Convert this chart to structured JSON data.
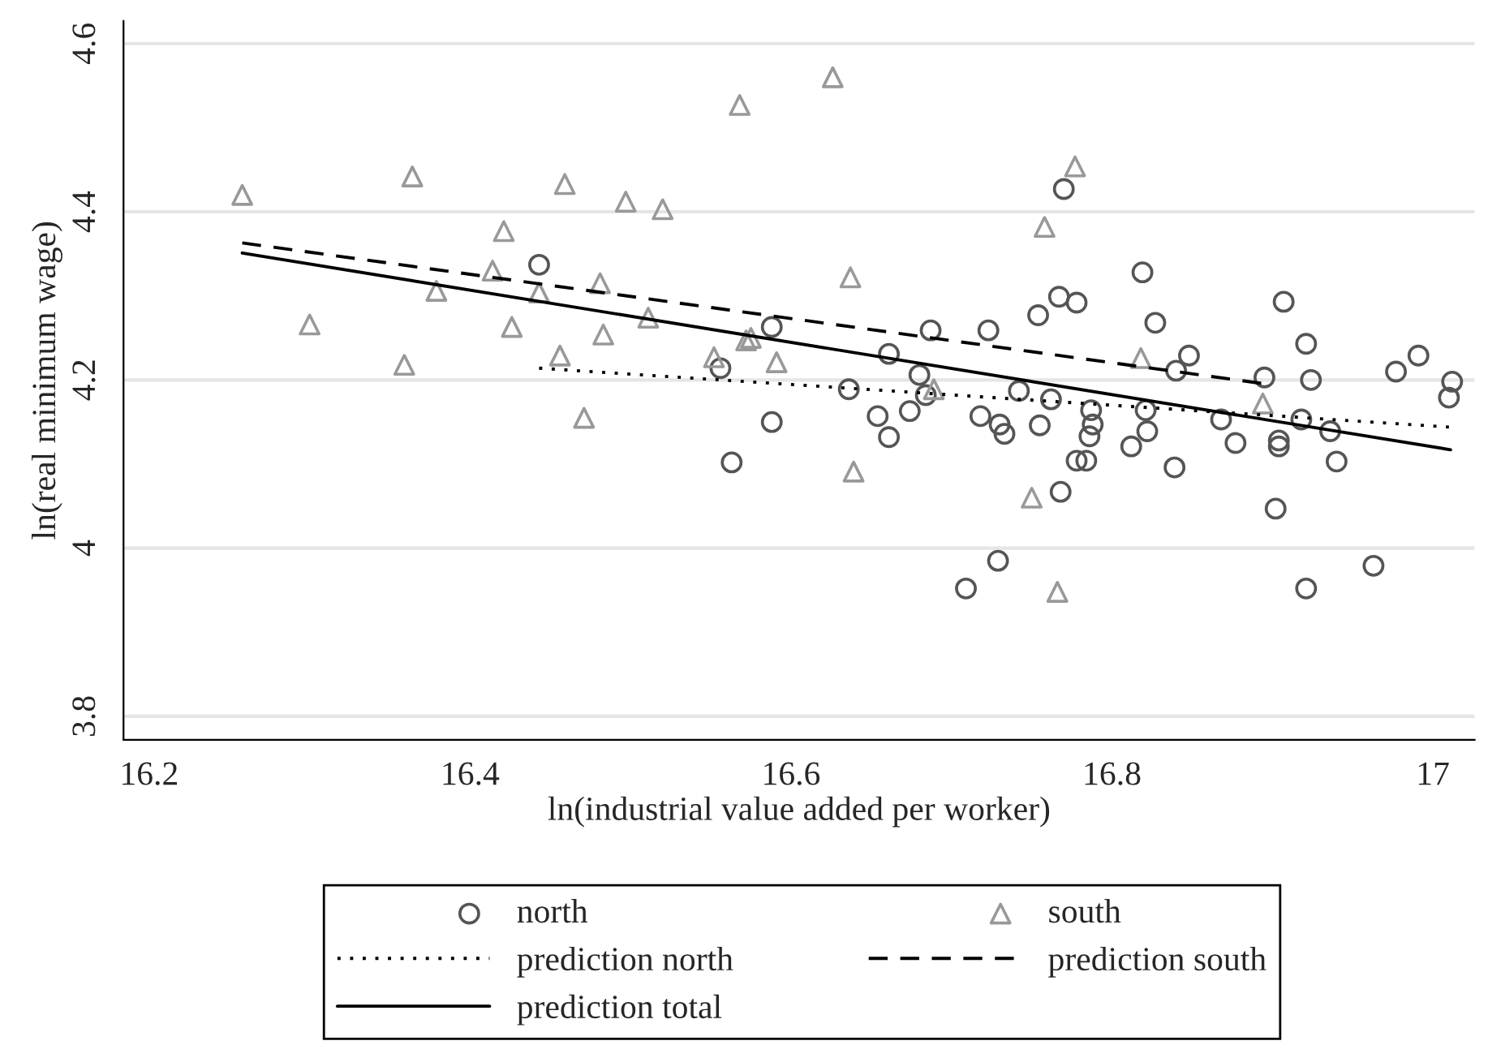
{
  "chart_data": {
    "type": "scatter",
    "xlabel": "ln(industrial value added per worker)",
    "ylabel": "ln(real minimum wage)",
    "xlim": [
      16.184,
      17.026
    ],
    "ylim": [
      3.772,
      4.627
    ],
    "xticks": [
      16.2,
      16.4,
      16.6,
      16.8,
      17
    ],
    "yticks": [
      3.8,
      4,
      4.2,
      4.4,
      4.6
    ],
    "grid": "y",
    "legend": "bottom",
    "series": [
      {
        "name": "north",
        "marker": "circle",
        "color": "#555555",
        "x": [
          16.443,
          16.588,
          16.556,
          16.588,
          16.563,
          16.636,
          16.661,
          16.654,
          16.661,
          16.674,
          16.68,
          16.684,
          16.687,
          16.709,
          16.718,
          16.723,
          16.729,
          16.73,
          16.733,
          16.742,
          16.754,
          16.755,
          16.762,
          16.767,
          16.768,
          16.77,
          16.778,
          16.778,
          16.784,
          16.787,
          16.788,
          16.786,
          16.812,
          16.819,
          16.821,
          16.822,
          16.827,
          16.839,
          16.84,
          16.848,
          16.868,
          16.877,
          16.895,
          16.902,
          16.904,
          16.904,
          16.907,
          16.918,
          16.921,
          16.921,
          16.924,
          16.936,
          16.94,
          16.963,
          16.977,
          16.991,
          17.012,
          17.01
        ],
        "values": [
          4.337,
          4.263,
          4.214,
          4.15,
          4.102,
          4.189,
          4.231,
          4.157,
          4.132,
          4.163,
          4.206,
          4.182,
          4.259,
          3.952,
          4.157,
          4.259,
          3.985,
          4.147,
          4.136,
          4.187,
          4.277,
          4.146,
          4.177,
          4.299,
          4.067,
          4.427,
          4.292,
          4.104,
          4.104,
          4.164,
          4.147,
          4.133,
          4.121,
          4.328,
          4.164,
          4.139,
          4.268,
          4.096,
          4.211,
          4.229,
          4.153,
          4.125,
          4.203,
          4.047,
          4.128,
          4.121,
          4.293,
          4.153,
          4.243,
          3.952,
          4.2,
          4.139,
          4.103,
          3.979,
          4.21,
          4.229,
          4.198,
          4.179
        ]
      },
      {
        "name": "south",
        "marker": "triangle",
        "color": "#999999",
        "x": [
          16.258,
          16.364,
          16.3,
          16.359,
          16.379,
          16.421,
          16.414,
          16.426,
          16.443,
          16.459,
          16.456,
          16.481,
          16.483,
          16.471,
          16.497,
          16.52,
          16.511,
          16.568,
          16.552,
          16.572,
          16.575,
          16.591,
          16.626,
          16.637,
          16.639,
          16.689,
          16.758,
          16.777,
          16.75,
          16.766,
          16.818,
          16.894
        ],
        "values": [
          4.42,
          4.442,
          4.266,
          4.218,
          4.306,
          4.377,
          4.33,
          4.263,
          4.304,
          4.433,
          4.229,
          4.315,
          4.254,
          4.155,
          4.412,
          4.403,
          4.274,
          4.527,
          4.227,
          4.247,
          4.25,
          4.221,
          4.56,
          4.322,
          4.091,
          4.189,
          4.382,
          4.454,
          4.06,
          3.948,
          4.226,
          4.172
        ]
      },
      {
        "name": "prediction north",
        "type": "line",
        "line_style": "dotted",
        "color": "#000000",
        "x": [
          16.443,
          17.01
        ],
        "values": [
          4.214,
          4.144
        ]
      },
      {
        "name": "prediction south",
        "type": "line",
        "line_style": "dashed",
        "color": "#000000",
        "x": [
          16.258,
          16.893
        ],
        "values": [
          4.363,
          4.196
        ]
      },
      {
        "name": "prediction total",
        "type": "line",
        "line_style": "solid",
        "color": "#000000",
        "x": [
          16.258,
          17.011
        ],
        "values": [
          4.351,
          4.117
        ]
      }
    ]
  }
}
